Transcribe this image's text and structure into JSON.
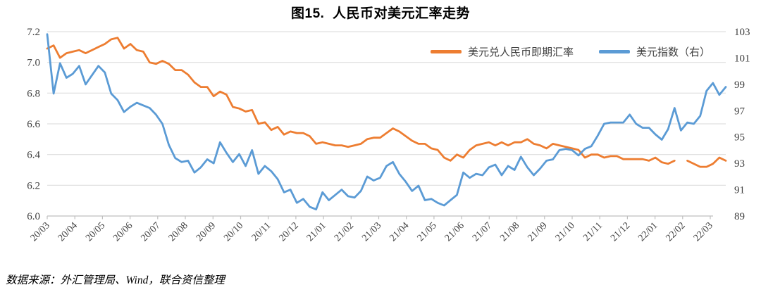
{
  "source_note": "数据来源：外汇管理局、Wind，联合资信整理",
  "colors": {
    "grid": "#D9D9D9",
    "axis_line": "#BFBFBF",
    "axis_text": "#404040"
  },
  "chart_data": {
    "type": "line",
    "title": "图15.  人民币对美元汇率走势",
    "grid": true,
    "legend_position": "top-right",
    "x_tick_labels": [
      "20/03",
      "20/04",
      "20/05",
      "20/06",
      "20/07",
      "20/08",
      "20/09",
      "20/10",
      "20/11",
      "20/12",
      "21/01",
      "21/02",
      "21/03",
      "21/04",
      "21/05",
      "21/06",
      "21/07",
      "21/08",
      "21/09",
      "21/10",
      "21/11",
      "21/12",
      "22/01",
      "22/02",
      "22/03"
    ],
    "left_axis": {
      "min": 6.0,
      "max": 7.2,
      "tick_labels": [
        "7.2",
        "7.0",
        "6.8",
        "6.6",
        "6.4",
        "6.2",
        "6.0"
      ]
    },
    "right_axis": {
      "min": 89,
      "max": 103,
      "tick_labels": [
        "103",
        "101",
        "99",
        "97",
        "95",
        "93",
        "91",
        "89"
      ]
    },
    "series": [
      {
        "name": "美元兑人民币即期汇率",
        "axis": "left",
        "color": "#ED7D31",
        "values": [
          7.09,
          7.11,
          7.03,
          7.06,
          7.07,
          7.08,
          7.06,
          7.08,
          7.1,
          7.12,
          7.15,
          7.16,
          7.09,
          7.12,
          7.08,
          7.07,
          7.0,
          6.99,
          7.01,
          6.99,
          6.95,
          6.95,
          6.92,
          6.87,
          6.84,
          6.84,
          6.78,
          6.81,
          6.79,
          6.71,
          6.7,
          6.68,
          6.69,
          6.6,
          6.61,
          6.56,
          6.58,
          6.53,
          6.55,
          6.54,
          6.54,
          6.52,
          6.47,
          6.48,
          6.47,
          6.46,
          6.46,
          6.45,
          6.46,
          6.47,
          6.5,
          6.51,
          6.51,
          6.54,
          6.57,
          6.55,
          6.52,
          6.49,
          6.47,
          6.47,
          6.44,
          6.43,
          6.38,
          6.36,
          6.4,
          6.38,
          6.43,
          6.46,
          6.47,
          6.48,
          6.46,
          6.48,
          6.46,
          6.48,
          6.48,
          6.5,
          6.47,
          6.46,
          6.44,
          6.47,
          6.46,
          6.45,
          6.44,
          6.43,
          6.38,
          6.4,
          6.4,
          6.38,
          6.39,
          6.39,
          6.37,
          6.37,
          6.37,
          6.37,
          6.36,
          6.38,
          6.35,
          6.34,
          6.36,
          null,
          6.36,
          6.34,
          6.32,
          6.32,
          6.34,
          6.38,
          6.36
        ]
      },
      {
        "name": "美元指数（右）",
        "axis": "right",
        "color": "#5B9BD5",
        "values": [
          102.8,
          98.3,
          100.6,
          99.5,
          99.8,
          100.4,
          99.0,
          99.7,
          100.4,
          99.9,
          98.3,
          97.8,
          96.9,
          97.3,
          97.6,
          97.4,
          97.2,
          96.7,
          96.0,
          94.4,
          93.4,
          93.1,
          93.2,
          92.3,
          92.7,
          93.3,
          93.0,
          94.6,
          93.8,
          93.1,
          93.7,
          92.8,
          94.0,
          92.2,
          92.8,
          92.4,
          91.8,
          90.8,
          91.0,
          90.0,
          90.3,
          89.7,
          89.5,
          90.8,
          90.2,
          90.6,
          91.0,
          90.5,
          90.4,
          90.9,
          92.0,
          91.7,
          91.9,
          92.8,
          93.1,
          92.2,
          91.6,
          90.9,
          91.3,
          90.2,
          90.3,
          90.0,
          89.8,
          90.2,
          90.6,
          92.3,
          91.9,
          92.2,
          92.1,
          92.7,
          92.9,
          92.1,
          92.8,
          92.5,
          93.5,
          92.7,
          92.1,
          92.6,
          93.2,
          93.3,
          94.0,
          94.1,
          94.0,
          93.6,
          94.1,
          94.3,
          95.1,
          96.0,
          96.1,
          96.1,
          96.1,
          96.7,
          96.0,
          95.7,
          95.7,
          95.2,
          94.8,
          95.6,
          97.2,
          95.5,
          96.1,
          96.0,
          96.6,
          98.5,
          99.1,
          98.2,
          98.8
        ]
      }
    ]
  }
}
